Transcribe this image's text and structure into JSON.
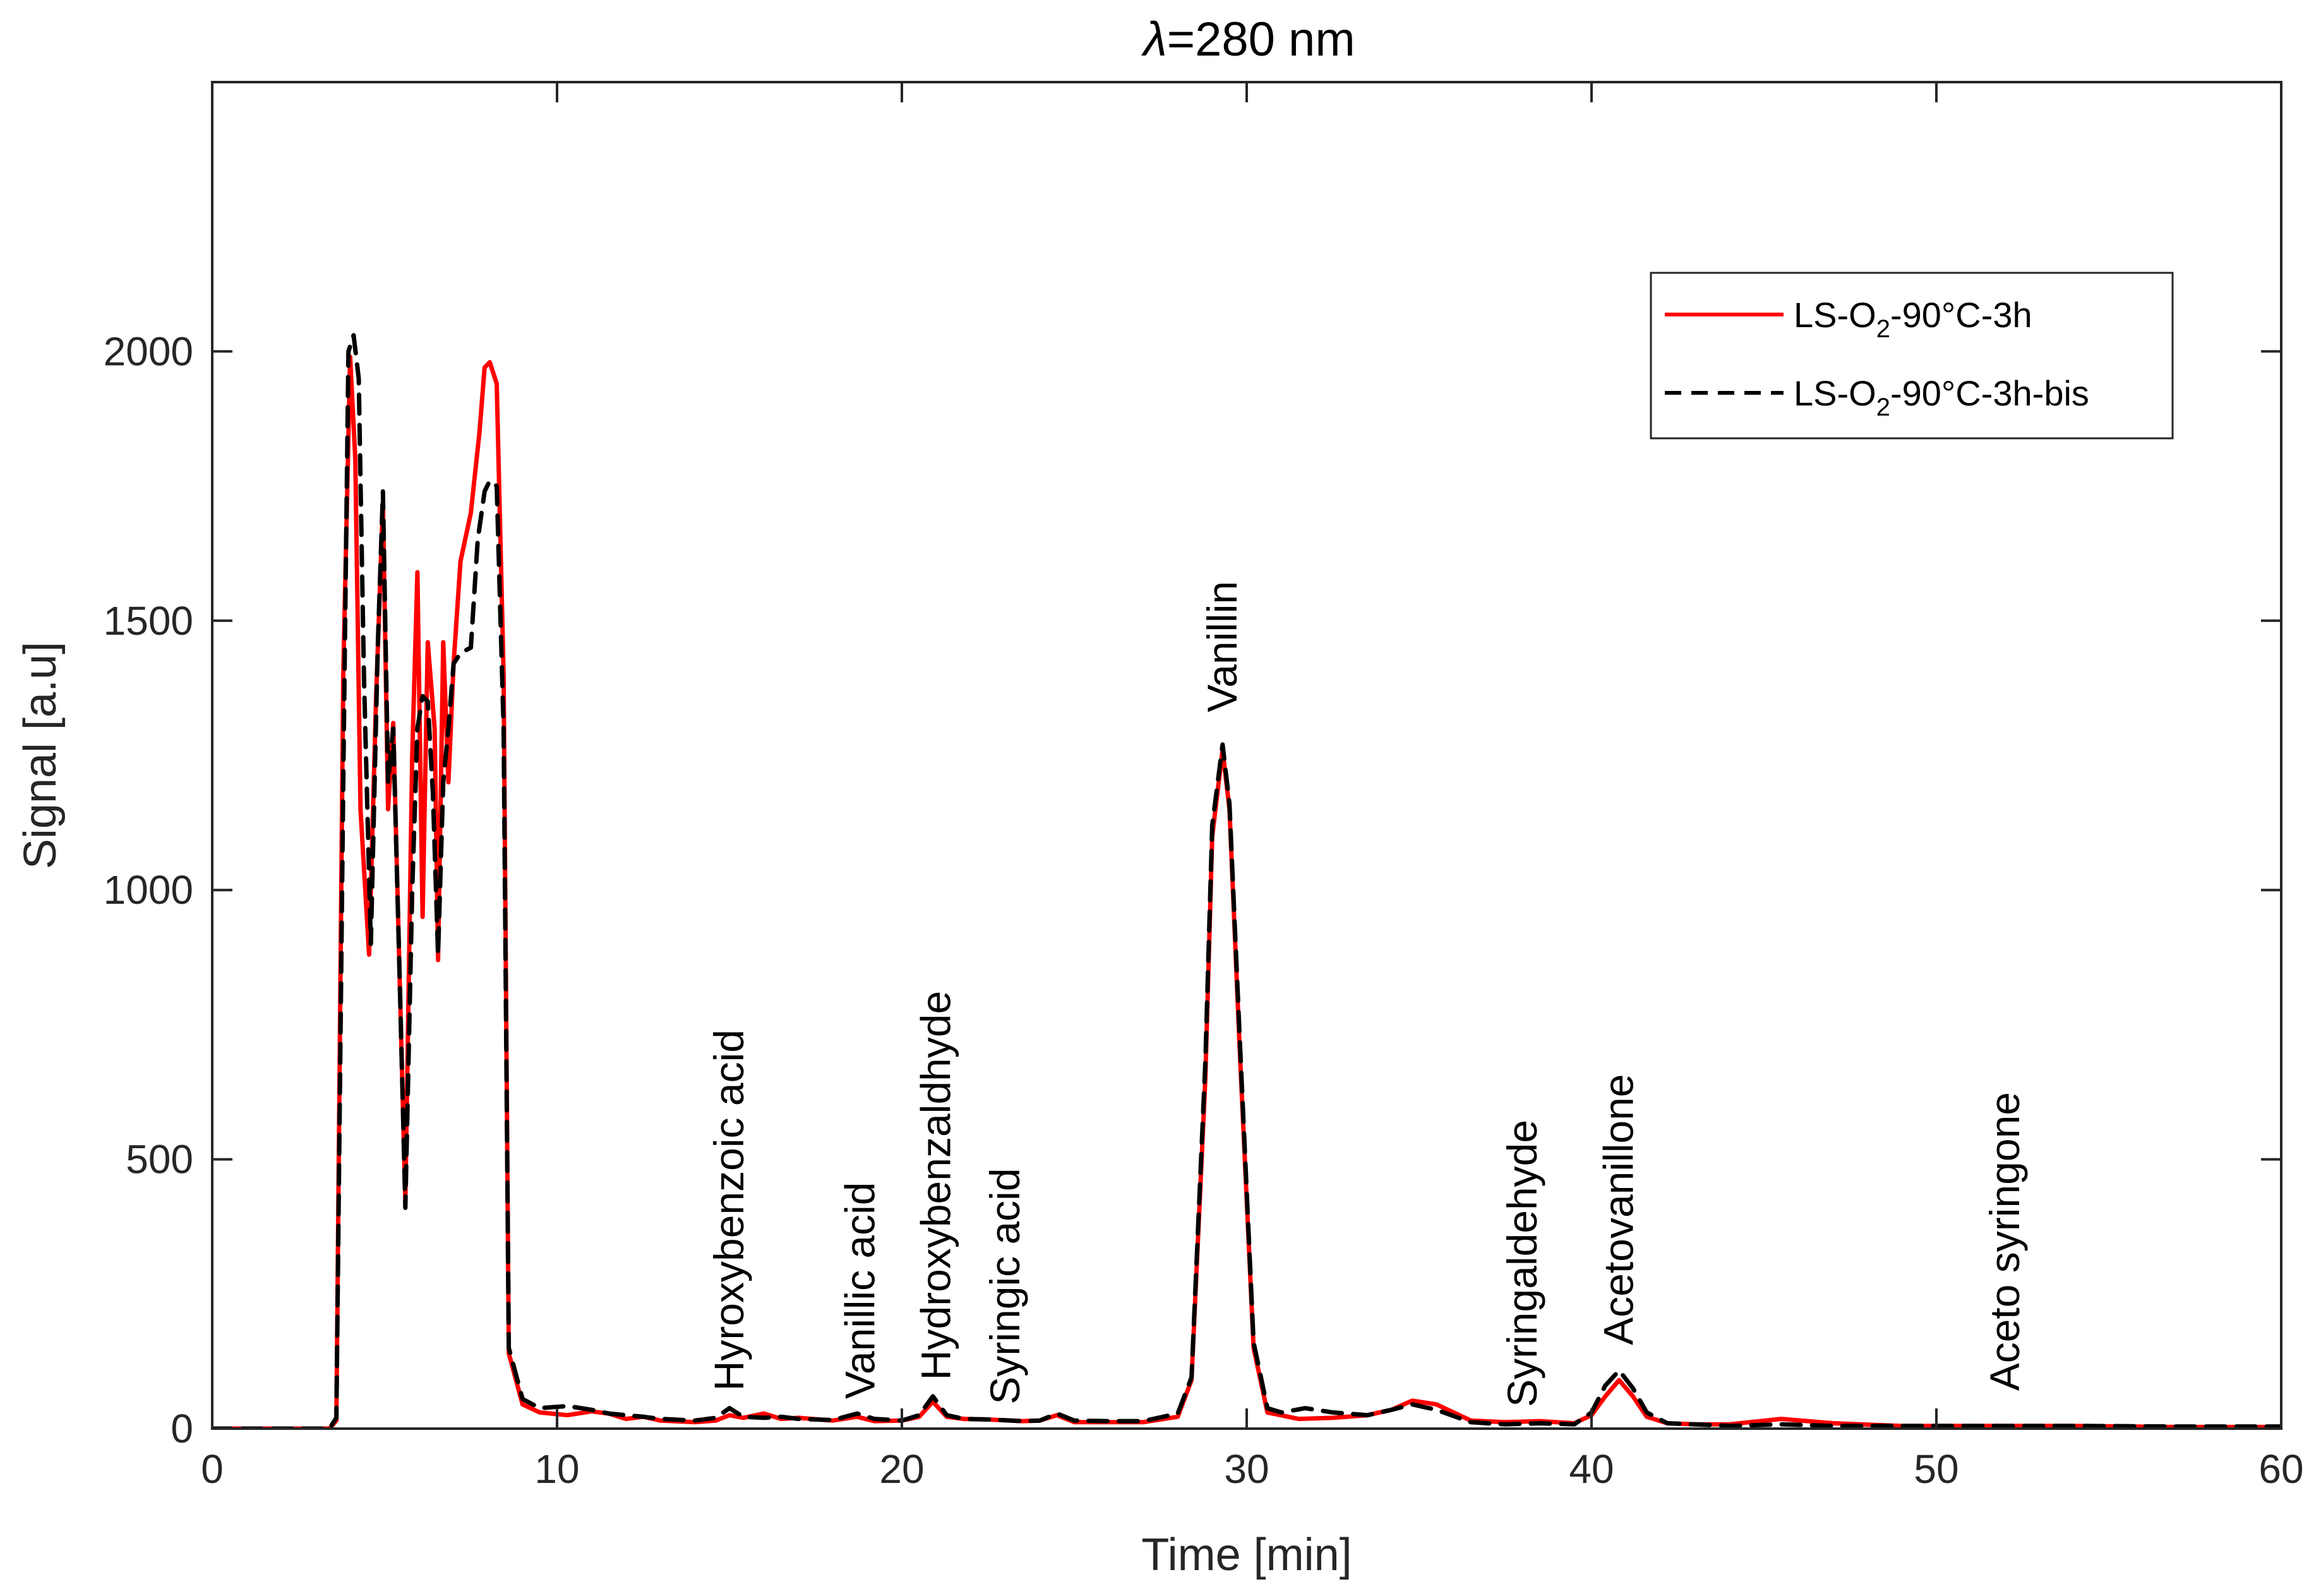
{
  "chart_data": {
    "type": "line",
    "title_symbol": "λ",
    "title_rest": "=280 nm",
    "xlabel": "Time [min]",
    "ylabel": "Signal [a.u]",
    "xlim": [
      0,
      60
    ],
    "ylim": [
      0,
      2500
    ],
    "xticks": [
      0,
      10,
      20,
      30,
      40,
      50,
      60
    ],
    "yticks": [
      0,
      500,
      1000,
      1500,
      2000
    ],
    "grid": false,
    "legend_position": "top-right",
    "legend": [
      {
        "pre": "LS-O",
        "sub": "2",
        "post": "-90°C-3h"
      },
      {
        "pre": "LS-O",
        "sub": "2",
        "post": "-90°C-3h-bis"
      }
    ],
    "annotations": [
      {
        "text": "Hyroxybenzoic acid",
        "x": 15.0,
        "y": 70
      },
      {
        "text": "Vanillic acid",
        "x": 18.8,
        "y": 55
      },
      {
        "text": "Hydroxybenzaldhyde",
        "x": 21.0,
        "y": 90
      },
      {
        "text": "Syringic acid",
        "x": 23.0,
        "y": 45
      },
      {
        "text": "Vanillin",
        "x": 29.3,
        "y": 1330
      },
      {
        "text": "Syringaldehyde",
        "x": 38.0,
        "y": 40
      },
      {
        "text": "Acetovanillone",
        "x": 40.8,
        "y": 155
      },
      {
        "text": "Aceto syringone",
        "x": 52.0,
        "y": 70
      }
    ],
    "series": [
      {
        "name": "LS-O2-90°C-3h",
        "color": "#ff0000",
        "dash": "solid",
        "x": [
          0,
          3.0,
          3.4,
          3.6,
          3.8,
          4.0,
          4.15,
          4.3,
          4.55,
          4.75,
          4.95,
          5.1,
          5.25,
          5.45,
          5.6,
          5.8,
          5.95,
          6.1,
          6.25,
          6.45,
          6.55,
          6.7,
          6.85,
          7.0,
          7.2,
          7.5,
          7.75,
          7.9,
          8.05,
          8.25,
          8.45,
          8.6,
          9.0,
          9.5,
          10.3,
          11.0,
          11.5,
          12.0,
          12.5,
          13.0,
          14.0,
          14.6,
          15.0,
          15.4,
          16.0,
          16.5,
          17.0,
          18.0,
          18.7,
          19.2,
          20.0,
          20.5,
          20.9,
          21.3,
          21.8,
          22.5,
          23.5,
          24.0,
          24.5,
          25.0,
          26.0,
          27.0,
          28.0,
          28.4,
          28.8,
          29.0,
          29.3,
          29.5,
          29.8,
          30.2,
          30.6,
          31.5,
          32.5,
          33.5,
          34.2,
          34.8,
          35.5,
          36.5,
          37.5,
          38.5,
          39.5,
          40.0,
          40.4,
          40.8,
          41.2,
          41.6,
          42.2,
          43.0,
          44.0,
          45.5,
          47.0,
          49.0,
          51.0,
          54.0,
          57.0,
          60.0
        ],
        "y": [
          0,
          0,
          0,
          15,
          1400,
          1990,
          1800,
          1150,
          880,
          1350,
          1720,
          1150,
          1310,
          800,
          420,
          1250,
          1590,
          950,
          1460,
          1300,
          870,
          1460,
          1200,
          1420,
          1610,
          1700,
          1850,
          1970,
          1980,
          1940,
          1400,
          140,
          45,
          30,
          25,
          32,
          28,
          18,
          22,
          15,
          12,
          15,
          25,
          20,
          28,
          18,
          20,
          15,
          22,
          14,
          15,
          22,
          50,
          22,
          18,
          17,
          14,
          15,
          25,
          12,
          12,
          12,
          22,
          90,
          650,
          1100,
          1260,
          1150,
          700,
          150,
          30,
          18,
          20,
          25,
          35,
          52,
          45,
          15,
          12,
          14,
          10,
          25,
          60,
          90,
          60,
          22,
          10,
          8,
          8,
          18,
          10,
          5,
          5,
          5,
          3,
          3
        ]
      },
      {
        "name": "LS-O2-90°C-3h-bis",
        "color": "#000000",
        "dash": "dashed",
        "x": [
          0,
          3.0,
          3.4,
          3.6,
          3.8,
          3.95,
          4.1,
          4.25,
          4.4,
          4.6,
          4.8,
          4.95,
          5.1,
          5.25,
          5.45,
          5.6,
          5.8,
          5.95,
          6.1,
          6.25,
          6.4,
          6.55,
          6.7,
          6.85,
          7.0,
          7.2,
          7.5,
          7.7,
          7.9,
          8.05,
          8.25,
          8.45,
          8.6,
          9.0,
          9.5,
          10.3,
          11.0,
          11.5,
          12.0,
          12.5,
          13.0,
          14.0,
          14.6,
          15.0,
          15.4,
          16.0,
          16.5,
          17.0,
          18.0,
          18.7,
          19.2,
          20.0,
          20.5,
          20.9,
          21.3,
          21.8,
          22.5,
          23.5,
          24.0,
          24.5,
          25.0,
          26.0,
          27.0,
          28.0,
          28.4,
          28.8,
          29.0,
          29.3,
          29.5,
          29.8,
          30.2,
          30.6,
          31.0,
          31.7,
          32.5,
          33.5,
          34.2,
          34.8,
          35.5,
          36.5,
          37.5,
          38.5,
          39.5,
          40.0,
          40.4,
          40.8,
          41.2,
          41.6,
          42.2,
          43.0,
          44.0,
          45.5,
          47.0,
          49.0,
          51.0,
          54.0,
          57.0,
          60.0
        ],
        "y": [
          0,
          0,
          0,
          20,
          1200,
          2000,
          2030,
          1950,
          1400,
          900,
          1450,
          1740,
          1200,
          1300,
          800,
          410,
          1000,
          1300,
          1360,
          1350,
          1180,
          880,
          1200,
          1300,
          1420,
          1440,
          1450,
          1650,
          1740,
          1760,
          1750,
          1300,
          150,
          55,
          38,
          42,
          35,
          28,
          25,
          22,
          18,
          15,
          20,
          38,
          22,
          20,
          22,
          18,
          16,
          28,
          18,
          15,
          25,
          60,
          25,
          18,
          17,
          14,
          15,
          28,
          15,
          14,
          14,
          28,
          95,
          680,
          1120,
          1270,
          1160,
          720,
          160,
          38,
          30,
          38,
          30,
          25,
          35,
          45,
          35,
          12,
          8,
          10,
          8,
          30,
          80,
          108,
          75,
          30,
          10,
          8,
          5,
          8,
          5,
          5,
          5,
          5,
          4,
          4
        ]
      }
    ]
  }
}
